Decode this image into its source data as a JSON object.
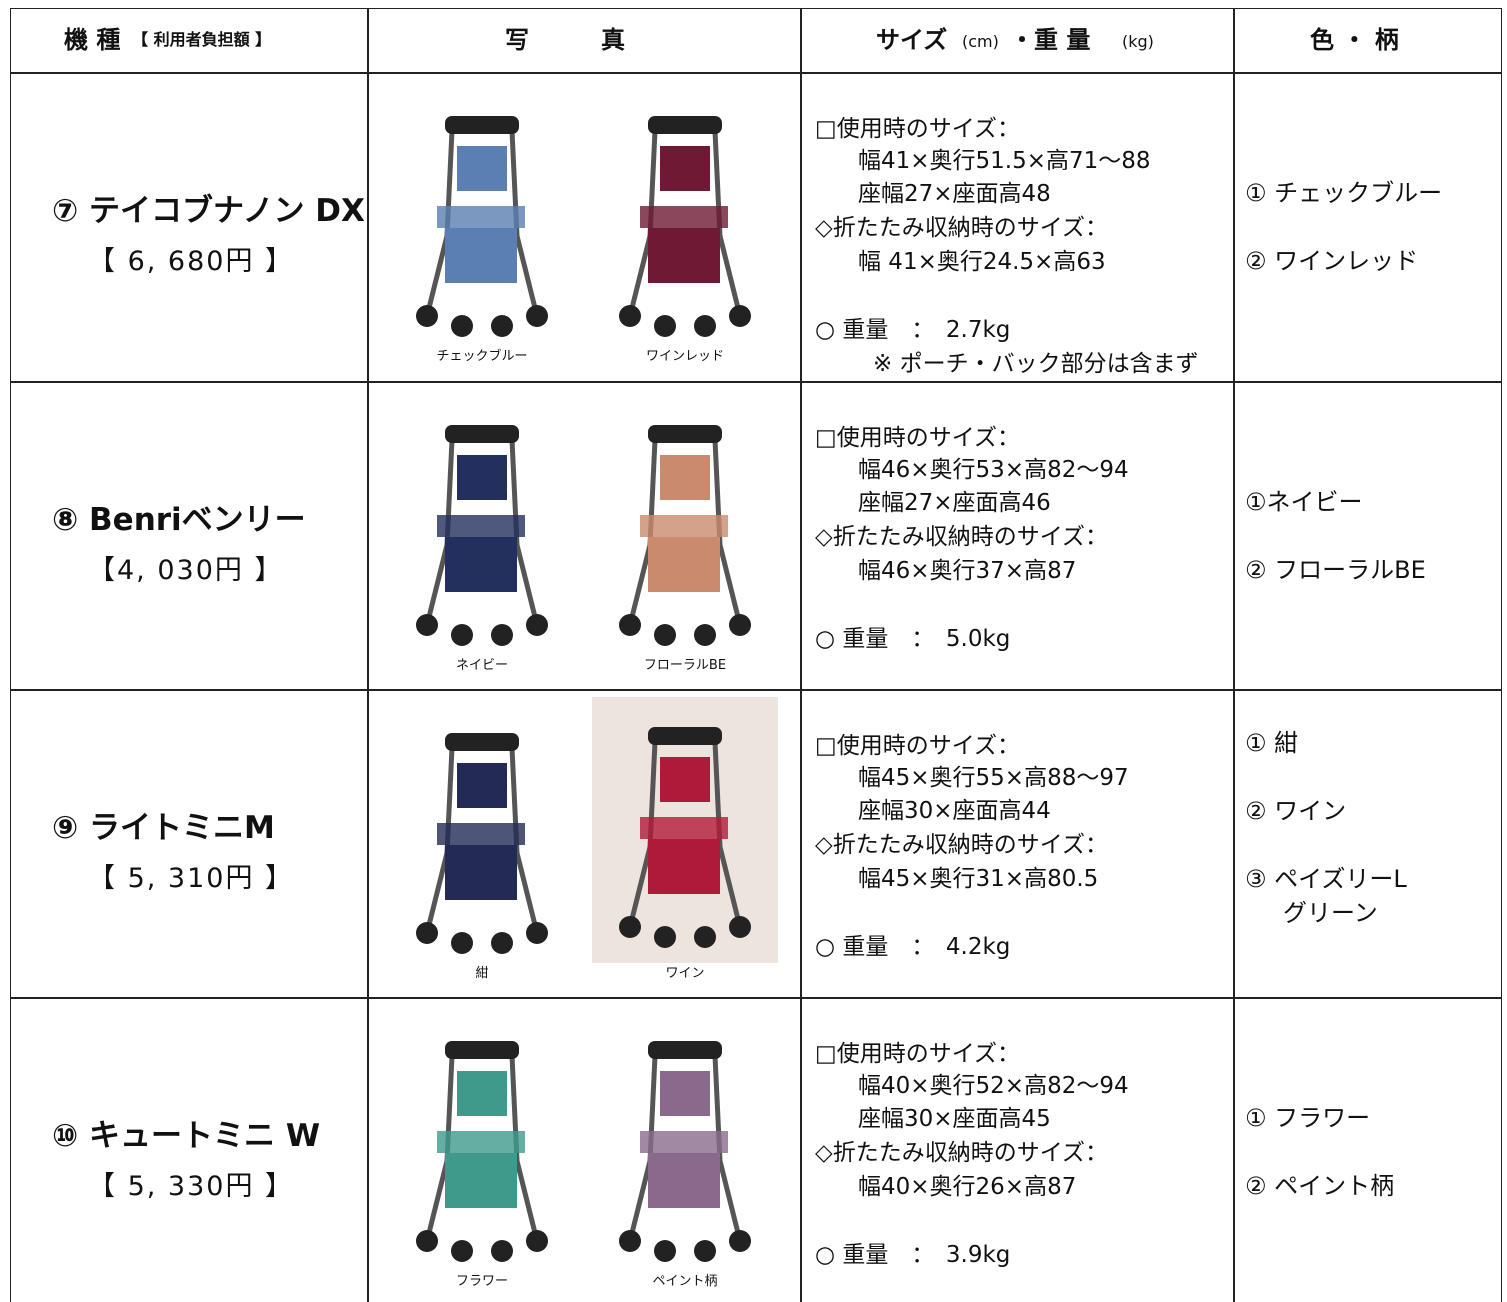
{
  "header": {
    "model": "機 種",
    "model_note": "【 利用者負担額 】",
    "photo": "写　　　真",
    "size": "サイズ",
    "size_unit": "(cm)",
    "weight": "・重 量",
    "weight_unit": "(kg)",
    "color": "色 ・ 柄"
  },
  "rows": [
    {
      "name": "⑦ テイコブナノン DX",
      "price": "【 6, 680円 】",
      "photos": [
        {
          "caption": "チェックブルー",
          "color": "#5a7fb0"
        },
        {
          "caption": "ワインレッド",
          "color": "#6e1a35"
        }
      ],
      "specs": {
        "use_label": "□使用時のサイズ：",
        "use_size": "幅41×奥行51.5×高71～88",
        "seat": "座幅27×座面高48",
        "fold_label": "◇折たたみ収納時のサイズ：",
        "fold_size": "幅 41×奥行24.5×高63",
        "weight": "○ 重量　：　2.7kg",
        "note": "※ ポーチ・バック部分は含まず"
      },
      "colors": [
        [
          "① チェックブルー"
        ],
        [
          "② ワインレッド"
        ]
      ]
    },
    {
      "name": "⑧ Benriベンリー",
      "price": "【4, 030円 】",
      "photos": [
        {
          "caption": "ネイビー",
          "color": "#23305e"
        },
        {
          "caption": "フローラルBE",
          "color": "#c98a6e"
        }
      ],
      "specs": {
        "use_label": "□使用時のサイズ：",
        "use_size": "幅46×奥行53×高82～94",
        "seat": "座幅27×座面高46",
        "fold_label": "◇折たたみ収納時のサイズ：",
        "fold_size": "幅46×奥行37×高87",
        "weight": "○ 重量　：　5.0kg"
      },
      "colors": [
        [
          "①ネイビー"
        ],
        [
          "② フローラルBE"
        ]
      ]
    },
    {
      "name": "⑨ ライトミニM",
      "price": "【 5, 310円 】",
      "photos": [
        {
          "caption": "紺",
          "color": "#232a55"
        },
        {
          "caption": "ワイン",
          "color": "#b01a3a"
        }
      ],
      "specs": {
        "use_label": "□使用時のサイズ：",
        "use_size": "幅45×奥行55×高88～97",
        "seat": "座幅30×座面高44",
        "fold_label": "◇折たたみ収納時のサイズ：",
        "fold_size": "幅45×奥行31×高80.5",
        "weight": "○ 重量　：　4.2kg"
      },
      "colors": [
        [
          "① 紺"
        ],
        [
          "② ワイン"
        ],
        [
          "③ ペイズリーL",
          "グリーン"
        ]
      ]
    },
    {
      "name": "⑩ キュートミニ W",
      "price": "【 5, 330円 】",
      "photos": [
        {
          "caption": "フラワー",
          "color": "#3f9a8c"
        },
        {
          "caption": "ペイント柄",
          "color": "#8a6a8c"
        }
      ],
      "specs": {
        "use_label": "□使用時のサイズ：",
        "use_size": "幅40×奥行52×高82～94",
        "seat": "座幅30×座面高45",
        "fold_label": "◇折たたみ収納時のサイズ：",
        "fold_size": "幅40×奥行26×高87",
        "weight": "○ 重量　：　3.9kg"
      },
      "colors": [
        [
          "① フラワー"
        ],
        [
          "② ペイント柄"
        ]
      ]
    }
  ]
}
